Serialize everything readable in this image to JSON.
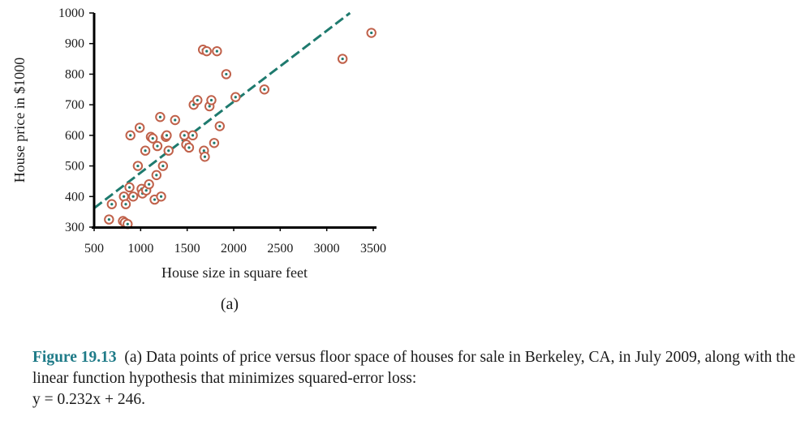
{
  "chart_data": {
    "type": "scatter",
    "xlabel": "House size in square feet",
    "ylabel": "House price in $1000",
    "subfigure_label": "(a)",
    "xlim": [
      500,
      3500
    ],
    "ylim": [
      300,
      1000
    ],
    "x_ticks": [
      500,
      1000,
      1500,
      2000,
      2500,
      3000,
      3500
    ],
    "y_ticks": [
      300,
      400,
      500,
      600,
      700,
      800,
      900,
      1000
    ],
    "grid": false,
    "legend": "none",
    "marker_color": "#c0614a",
    "marker_center_color": "#1e7a6e",
    "line_color": "#1e7a6e",
    "series": [
      {
        "kind": "points",
        "x": [
          660,
          690,
          810,
          820,
          830,
          840,
          860,
          880,
          890,
          920,
          970,
          990,
          1010,
          1020,
          1050,
          1060,
          1090,
          1110,
          1130,
          1150,
          1170,
          1180,
          1210,
          1220,
          1240,
          1270,
          1280,
          1300,
          1370,
          1470,
          1490,
          1520,
          1560,
          1570,
          1610,
          1670,
          1680,
          1690,
          1710,
          1740,
          1760,
          1790,
          1820,
          1850,
          1920,
          2020,
          2330,
          3170,
          3480
        ],
        "y": [
          325,
          375,
          320,
          400,
          315,
          375,
          310,
          430,
          600,
          400,
          500,
          625,
          425,
          410,
          550,
          420,
          440,
          595,
          590,
          390,
          470,
          565,
          660,
          400,
          500,
          595,
          600,
          550,
          650,
          600,
          570,
          560,
          600,
          700,
          715,
          880,
          550,
          530,
          875,
          695,
          715,
          575,
          875,
          630,
          800,
          725,
          750,
          850,
          935
        ]
      },
      {
        "kind": "line",
        "x": [
          500,
          3250
        ],
        "y": [
          362,
          1000
        ]
      }
    ]
  },
  "caption": {
    "figure_number": "Figure 19.13",
    "text": "(a) Data points of price versus floor space of houses for sale in Berkeley, CA, in July 2009, along with the linear function hypothesis that minimizes squared-error loss:",
    "equation": "y = 0.232x + 246."
  }
}
